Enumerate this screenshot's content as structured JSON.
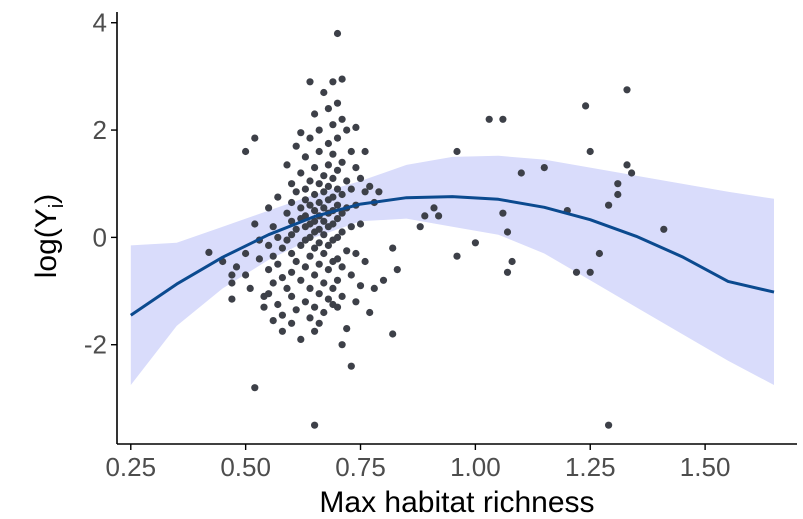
{
  "chart_data": {
    "type": "scatter",
    "title": "",
    "xlabel": "Max habitat richness",
    "ylabel": "log(Y",
    "ylabel_sub": "i",
    "ylabel_close": ")",
    "xlim": [
      0.22,
      1.7
    ],
    "ylim": [
      -3.85,
      4.2
    ],
    "x_ticks": [
      0.25,
      0.5,
      0.75,
      1.0,
      1.25,
      1.5
    ],
    "x_tick_labels": [
      "0.25",
      "0.50",
      "0.75",
      "1.00",
      "1.25",
      "1.50"
    ],
    "y_ticks": [
      -2,
      0,
      2,
      4
    ],
    "y_tick_labels": [
      "-2",
      "0",
      "2",
      "4"
    ],
    "grid": false,
    "colors": {
      "points": "#3d4048",
      "fit_line": "#0b4a8f",
      "ribbon": "#d9dcfb",
      "axis": "#000000"
    },
    "fit": {
      "x": [
        0.25,
        0.35,
        0.45,
        0.55,
        0.65,
        0.75,
        0.85,
        0.95,
        1.05,
        1.15,
        1.25,
        1.35,
        1.45,
        1.55,
        1.65
      ],
      "y": [
        -1.45,
        -0.87,
        -0.37,
        0.05,
        0.39,
        0.62,
        0.74,
        0.76,
        0.71,
        0.56,
        0.33,
        0.02,
        -0.36,
        -0.82,
        -1.02
      ],
      "lower": [
        -2.75,
        -1.65,
        -0.95,
        -0.42,
        0.0,
        0.3,
        0.35,
        0.2,
        0.05,
        -0.3,
        -0.8,
        -1.3,
        -1.8,
        -2.3,
        -2.75
      ],
      "upper": [
        -0.15,
        -0.1,
        0.2,
        0.5,
        0.8,
        1.05,
        1.35,
        1.5,
        1.52,
        1.45,
        1.3,
        1.15,
        1.0,
        0.85,
        0.72
      ]
    },
    "points": [
      [
        0.42,
        -0.28
      ],
      [
        0.45,
        -0.45
      ],
      [
        0.47,
        -0.7
      ],
      [
        0.47,
        -0.85
      ],
      [
        0.47,
        -1.15
      ],
      [
        0.48,
        -0.55
      ],
      [
        0.5,
        1.6
      ],
      [
        0.5,
        -0.3
      ],
      [
        0.5,
        -0.7
      ],
      [
        0.51,
        -0.95
      ],
      [
        0.52,
        1.85
      ],
      [
        0.52,
        -2.8
      ],
      [
        0.52,
        0.25
      ],
      [
        0.53,
        -0.05
      ],
      [
        0.53,
        -0.4
      ],
      [
        0.54,
        -1.1
      ],
      [
        0.54,
        -1.3
      ],
      [
        0.55,
        0.55
      ],
      [
        0.55,
        -0.15
      ],
      [
        0.55,
        -0.6
      ],
      [
        0.55,
        -1.05
      ],
      [
        0.56,
        0.2
      ],
      [
        0.56,
        -0.35
      ],
      [
        0.56,
        -0.85
      ],
      [
        0.56,
        -1.55
      ],
      [
        0.57,
        0.75
      ],
      [
        0.57,
        0.0
      ],
      [
        0.57,
        -0.5
      ],
      [
        0.57,
        -1.25
      ],
      [
        0.58,
        -0.2
      ],
      [
        0.58,
        -0.75
      ],
      [
        0.58,
        -1.45
      ],
      [
        0.58,
        -1.75
      ],
      [
        0.59,
        1.35
      ],
      [
        0.59,
        0.45
      ],
      [
        0.59,
        -0.05
      ],
      [
        0.59,
        -0.95
      ],
      [
        0.6,
        1.0
      ],
      [
        0.6,
        0.65
      ],
      [
        0.6,
        0.3
      ],
      [
        0.6,
        0.05
      ],
      [
        0.6,
        -0.3
      ],
      [
        0.6,
        -0.65
      ],
      [
        0.6,
        -1.1
      ],
      [
        0.6,
        -1.6
      ],
      [
        0.61,
        1.7
      ],
      [
        0.61,
        0.85
      ],
      [
        0.61,
        0.15
      ],
      [
        0.61,
        -0.45
      ],
      [
        0.61,
        -1.35
      ],
      [
        0.62,
        1.95
      ],
      [
        0.62,
        1.2
      ],
      [
        0.62,
        0.55
      ],
      [
        0.62,
        0.35
      ],
      [
        0.62,
        -0.15
      ],
      [
        0.62,
        -0.8
      ],
      [
        0.62,
        -1.9
      ],
      [
        0.63,
        1.5
      ],
      [
        0.63,
        0.9
      ],
      [
        0.63,
        0.7
      ],
      [
        0.63,
        0.4
      ],
      [
        0.63,
        0.2
      ],
      [
        0.63,
        -0.05
      ],
      [
        0.63,
        -0.55
      ],
      [
        0.63,
        -1.2
      ],
      [
        0.64,
        2.9
      ],
      [
        0.64,
        1.85
      ],
      [
        0.64,
        1.05
      ],
      [
        0.64,
        0.6
      ],
      [
        0.64,
        0.25
      ],
      [
        0.64,
        0.0
      ],
      [
        0.64,
        -0.35
      ],
      [
        0.64,
        -0.95
      ],
      [
        0.64,
        -1.5
      ],
      [
        0.65,
        2.3
      ],
      [
        0.65,
        1.3
      ],
      [
        0.65,
        0.8
      ],
      [
        0.65,
        0.5
      ],
      [
        0.65,
        0.3
      ],
      [
        0.65,
        0.1
      ],
      [
        0.65,
        -0.2
      ],
      [
        0.65,
        -0.7
      ],
      [
        0.65,
        -1.3
      ],
      [
        0.65,
        -1.75
      ],
      [
        0.65,
        -3.5
      ],
      [
        0.66,
        2.0
      ],
      [
        0.66,
        1.6
      ],
      [
        0.66,
        1.0
      ],
      [
        0.66,
        0.65
      ],
      [
        0.66,
        0.4
      ],
      [
        0.66,
        0.15
      ],
      [
        0.66,
        -0.1
      ],
      [
        0.66,
        -0.5
      ],
      [
        0.66,
        -1.05
      ],
      [
        0.66,
        -1.6
      ],
      [
        0.67,
        2.7
      ],
      [
        0.67,
        1.15
      ],
      [
        0.67,
        0.85
      ],
      [
        0.67,
        0.55
      ],
      [
        0.67,
        0.3
      ],
      [
        0.67,
        0.05
      ],
      [
        0.67,
        -0.3
      ],
      [
        0.67,
        -0.85
      ],
      [
        0.67,
        -1.4
      ],
      [
        0.68,
        2.4
      ],
      [
        0.68,
        1.75
      ],
      [
        0.68,
        1.35
      ],
      [
        0.68,
        0.95
      ],
      [
        0.68,
        0.7
      ],
      [
        0.68,
        0.45
      ],
      [
        0.68,
        0.2
      ],
      [
        0.68,
        -0.15
      ],
      [
        0.68,
        -0.6
      ],
      [
        0.68,
        -1.15
      ],
      [
        0.69,
        2.9
      ],
      [
        0.69,
        2.1
      ],
      [
        0.69,
        1.55
      ],
      [
        0.69,
        1.1
      ],
      [
        0.69,
        0.75
      ],
      [
        0.69,
        0.5
      ],
      [
        0.69,
        0.25
      ],
      [
        0.69,
        -0.05
      ],
      [
        0.69,
        -0.45
      ],
      [
        0.69,
        -0.95
      ],
      [
        0.69,
        -1.25
      ],
      [
        0.7,
        3.8
      ],
      [
        0.7,
        2.5
      ],
      [
        0.7,
        1.85
      ],
      [
        0.7,
        1.25
      ],
      [
        0.7,
        0.9
      ],
      [
        0.7,
        0.6
      ],
      [
        0.7,
        0.35
      ],
      [
        0.7,
        0.0
      ],
      [
        0.7,
        -0.4
      ],
      [
        0.7,
        -0.8
      ],
      [
        0.7,
        -1.3
      ],
      [
        0.71,
        2.95
      ],
      [
        0.71,
        2.2
      ],
      [
        0.71,
        1.4
      ],
      [
        0.71,
        0.8
      ],
      [
        0.71,
        0.45
      ],
      [
        0.71,
        0.1
      ],
      [
        0.71,
        -0.55
      ],
      [
        0.71,
        -1.1
      ],
      [
        0.71,
        -2.0
      ],
      [
        0.72,
        2.0
      ],
      [
        0.72,
        1.05
      ],
      [
        0.72,
        0.55
      ],
      [
        0.72,
        -0.25
      ],
      [
        0.72,
        -1.7
      ],
      [
        0.73,
        1.6
      ],
      [
        0.73,
        0.9
      ],
      [
        0.73,
        0.2
      ],
      [
        0.73,
        -0.7
      ],
      [
        0.73,
        -2.4
      ],
      [
        0.74,
        2.05
      ],
      [
        0.74,
        1.3
      ],
      [
        0.74,
        0.6
      ],
      [
        0.74,
        -0.3
      ],
      [
        0.74,
        -1.2
      ],
      [
        0.75,
        1.1
      ],
      [
        0.75,
        0.25
      ],
      [
        0.75,
        -0.9
      ],
      [
        0.76,
        1.6
      ],
      [
        0.76,
        0.85
      ],
      [
        0.76,
        -0.45
      ],
      [
        0.77,
        0.95
      ],
      [
        0.77,
        -1.4
      ],
      [
        0.78,
        0.65
      ],
      [
        0.78,
        -0.95
      ],
      [
        0.79,
        0.85
      ],
      [
        0.8,
        -0.8
      ],
      [
        0.82,
        -0.2
      ],
      [
        0.82,
        -1.8
      ],
      [
        0.83,
        -0.6
      ],
      [
        0.88,
        0.2
      ],
      [
        0.89,
        0.4
      ],
      [
        0.91,
        0.55
      ],
      [
        0.92,
        0.4
      ],
      [
        0.96,
        1.6
      ],
      [
        0.96,
        -0.35
      ],
      [
        1.0,
        -0.1
      ],
      [
        1.03,
        2.2
      ],
      [
        1.06,
        2.2
      ],
      [
        1.06,
        0.45
      ],
      [
        1.07,
        0.1
      ],
      [
        1.07,
        -0.65
      ],
      [
        1.08,
        -0.45
      ],
      [
        1.1,
        1.2
      ],
      [
        1.15,
        1.3
      ],
      [
        1.2,
        0.5
      ],
      [
        1.22,
        -0.65
      ],
      [
        1.24,
        2.45
      ],
      [
        1.25,
        1.6
      ],
      [
        1.25,
        -0.65
      ],
      [
        1.27,
        -0.3
      ],
      [
        1.29,
        0.6
      ],
      [
        1.29,
        -3.5
      ],
      [
        1.31,
        1.0
      ],
      [
        1.31,
        0.8
      ],
      [
        1.33,
        2.75
      ],
      [
        1.33,
        1.35
      ],
      [
        1.34,
        1.2
      ],
      [
        1.41,
        0.15
      ]
    ]
  }
}
